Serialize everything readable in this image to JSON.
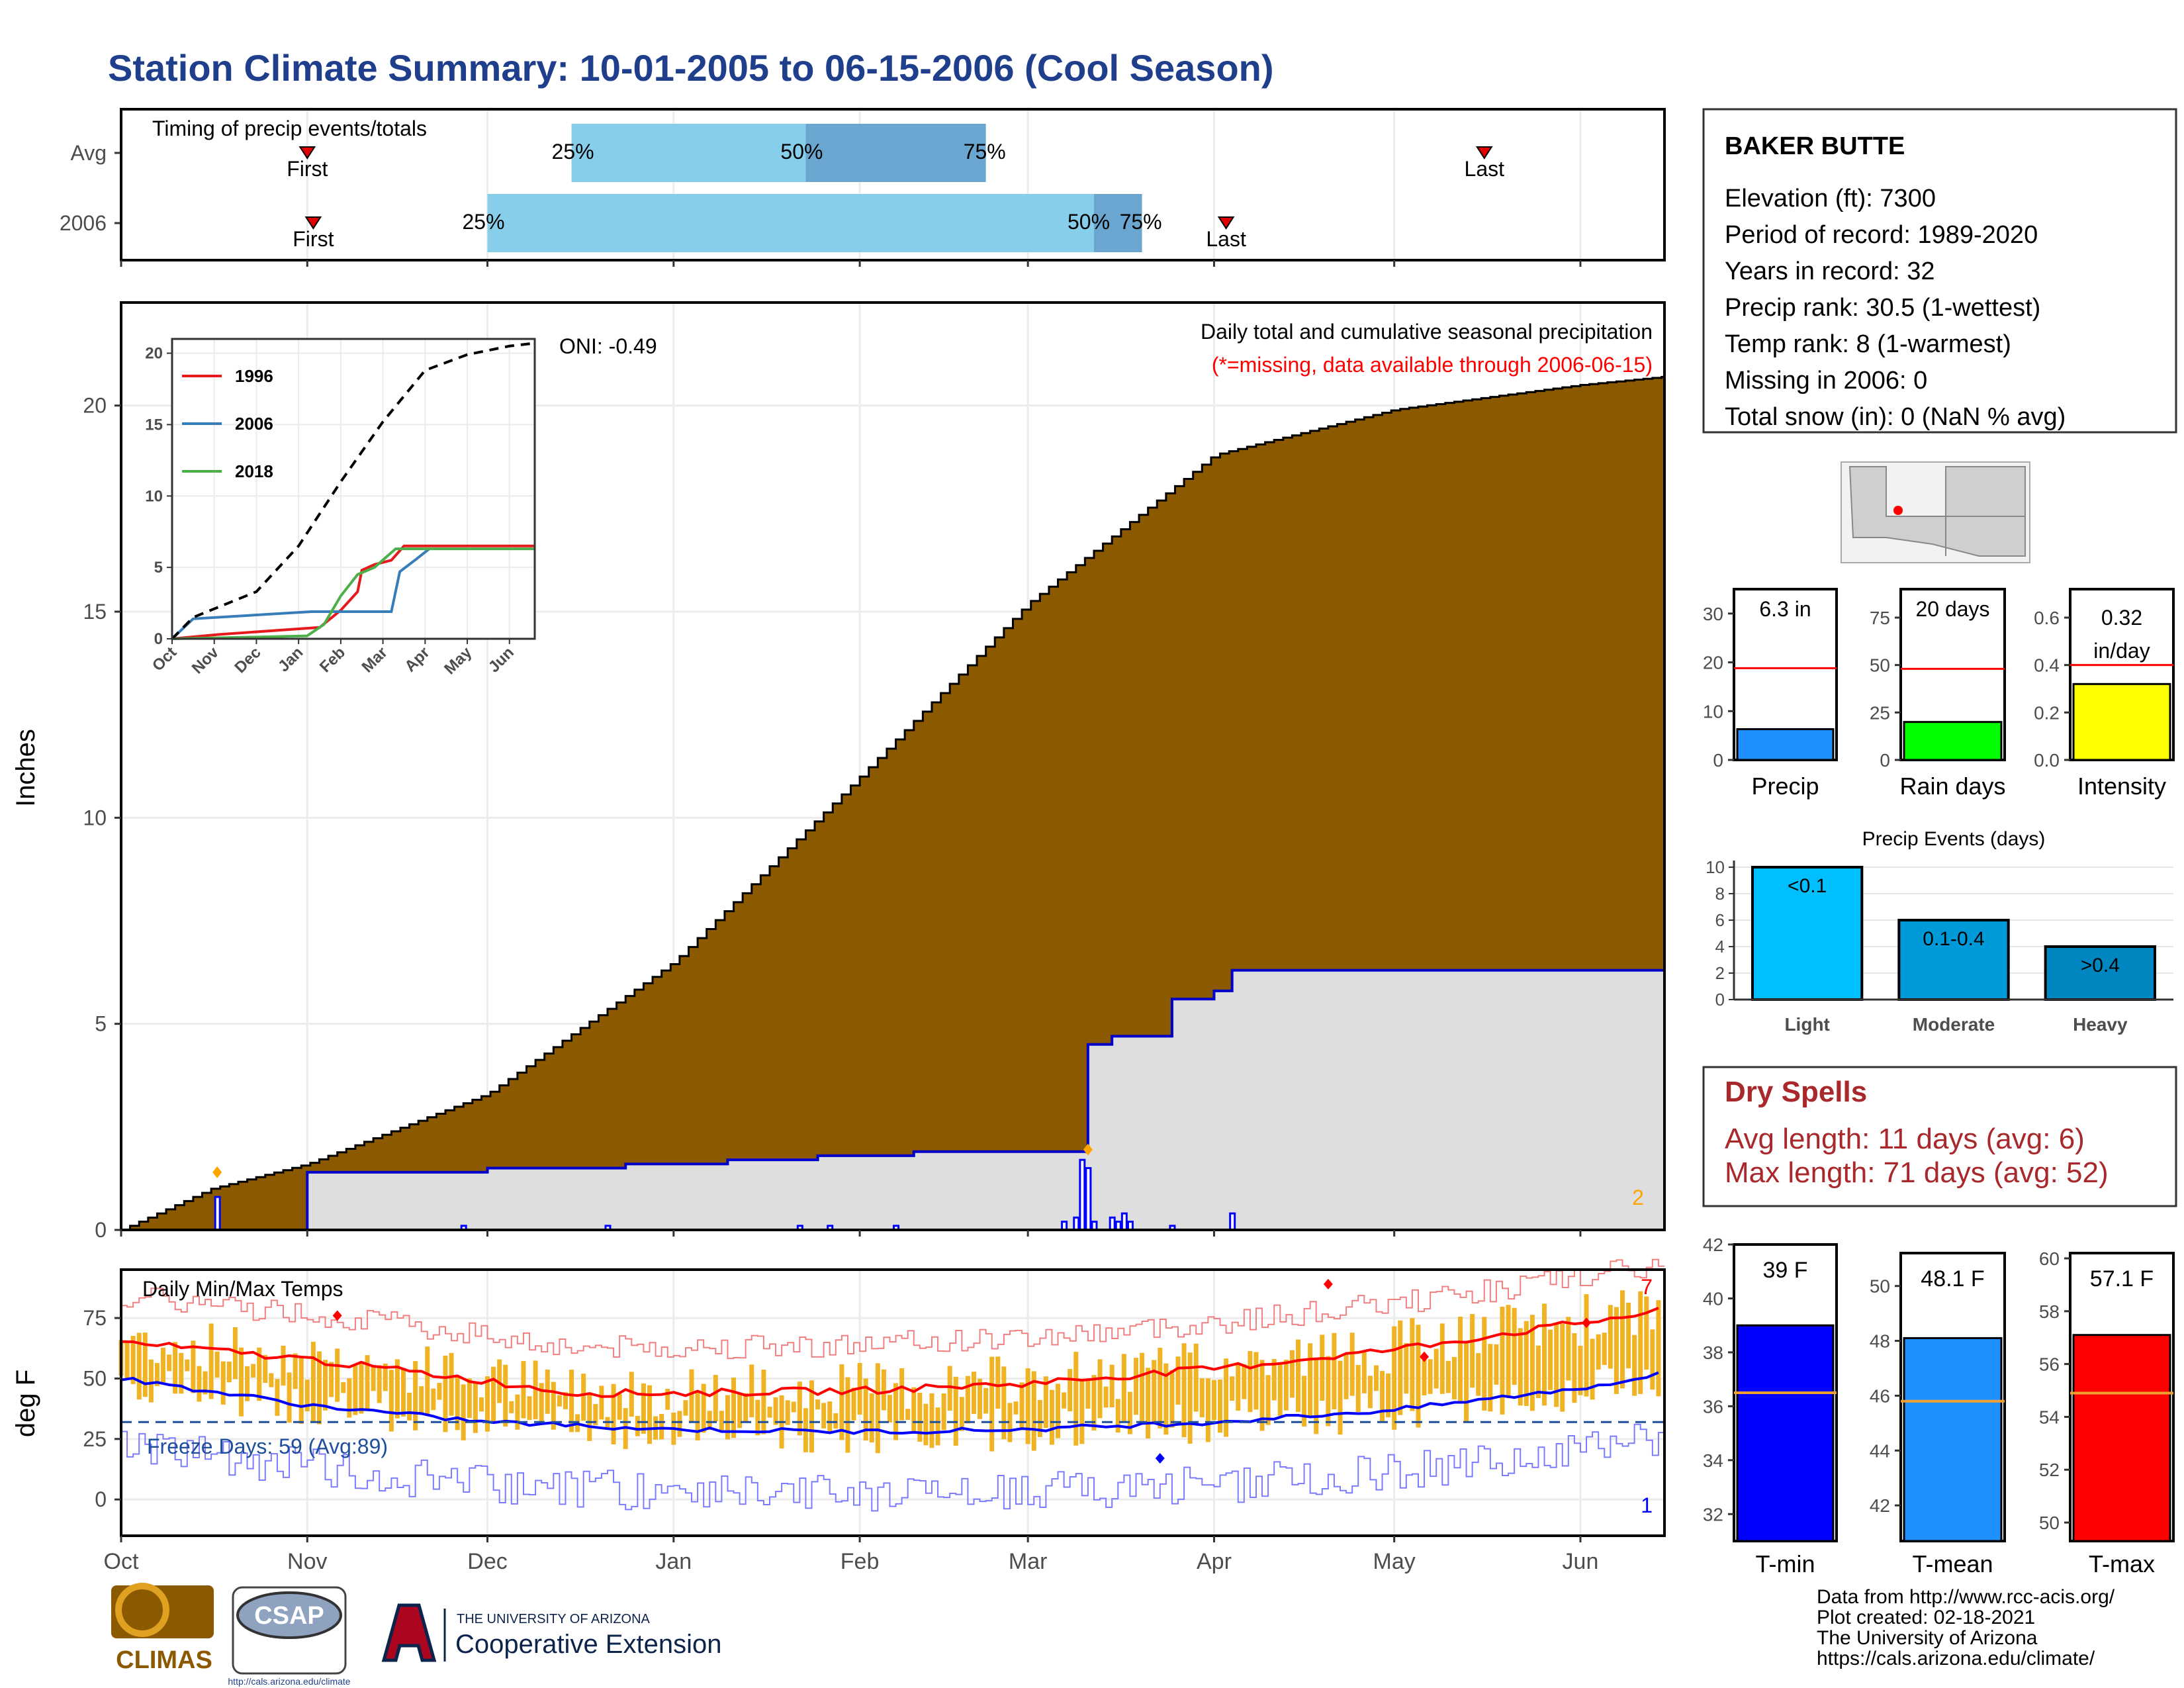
{
  "title": "Station Climate Summary: 10-01-2005 to 06-15-2006 (Cool Season)",
  "station_box": {
    "name": "BAKER BUTTE",
    "lines": [
      "Elevation (ft): 7300",
      "Period of record: 1989-2020",
      "Years in record: 32",
      "Precip rank: 30.5 (1-wettest)",
      "Temp rank: 8 (1-warmest)",
      "Missing in 2006: 0",
      "Total snow (in): 0 (NaN % avg)"
    ]
  },
  "dry_spells": {
    "title": "Dry Spells",
    "avg_line": "Avg length: 11 days (avg: 6)",
    "max_line": "Max length: 71 days (avg: 52)"
  },
  "footer": {
    "lines": [
      "Data from http://www.rcc-acis.org/",
      "Plot created: 02-18-2021",
      "The University of Arizona",
      "https://cals.arizona.edu/climate/"
    ]
  },
  "logos": {
    "climas": "CLIMAS",
    "csap": "CSAP",
    "csap_url": "http://cals.arizona.edu/climate",
    "ua_small": "THE UNIVERSITY OF ARIZONA",
    "ua_ext": "Cooperative Extension"
  },
  "month_labels": [
    "Oct",
    "Nov",
    "Dec",
    "Jan",
    "Feb",
    "Mar",
    "Apr",
    "May",
    "Jun"
  ],
  "colors": {
    "title_blue": "#1f3f8c",
    "cum_avg_fill": "#8b5a00",
    "cum_2006_fill": "#dedede",
    "timing_light": "#87ceeb",
    "timing_dark": "#6aa6cf",
    "dry_spell_red": "#a8282b",
    "temp_bar": "#f0b323",
    "tmax_line": "#ff0000",
    "tmin_line": "#0000ff"
  },
  "chart_data": [
    {
      "type": "bar",
      "name": "timing",
      "title": "Timing of precip events/totals",
      "categories": [
        "Avg",
        "2006"
      ],
      "rows": [
        {
          "label": "Avg",
          "first": "Nov 1",
          "last": "May 16",
          "p25": "Dec 15",
          "p50": "Jan 23",
          "p75": "Feb 22"
        },
        {
          "label": "2006",
          "first": "Nov 2",
          "last": "Apr 3",
          "p25": "Dec 1",
          "p50": "Mar 12",
          "p75": "Mar 20"
        }
      ],
      "marker_labels": {
        "first": "First",
        "last": "Last",
        "p25": "25%",
        "p50": "50%",
        "p75": "75%"
      }
    },
    {
      "type": "area",
      "name": "cumulative_precip",
      "title": "Daily total and cumulative seasonal precipitation",
      "subtitle": "(*=missing, data available through 2006-06-15)",
      "oni": "ONI: -0.49",
      "ylabel": "Inches",
      "ylim": [
        0,
        22.5
      ],
      "yticks": [
        0,
        5,
        10,
        15,
        20
      ],
      "avg_cumulative": {
        "x": [
          "Oct 1",
          "Oct 16",
          "Nov 1",
          "Dec 1",
          "Jan 1",
          "Feb 1",
          "Mar 1",
          "Apr 1",
          "May 1",
          "Jun 1",
          "Jun 15"
        ],
        "y": [
          0,
          1.0,
          1.6,
          3.3,
          6.5,
          11.0,
          15.2,
          18.8,
          19.9,
          20.5,
          20.7
        ]
      },
      "series_2006_cumulative": {
        "x": [
          "Oct 1",
          "Oct 16",
          "Nov 1",
          "Dec 1",
          "Dec 24",
          "Jan 10",
          "Jan 25",
          "Feb 10",
          "Mar 8",
          "Mar 11",
          "Mar 15",
          "Mar 18",
          "Mar 25",
          "Apr 1",
          "Apr 4",
          "Jun 15"
        ],
        "y": [
          0,
          0,
          1.4,
          1.5,
          1.6,
          1.7,
          1.8,
          1.9,
          1.9,
          4.5,
          4.7,
          4.7,
          5.6,
          5.8,
          6.3,
          6.3
        ]
      },
      "daily_precip_2006": {
        "x": [
          "Oct 17",
          "Nov 27",
          "Dec 21",
          "Jan 22",
          "Jan 27",
          "Feb 7",
          "Mar 7",
          "Mar 9",
          "Mar 10",
          "Mar 11",
          "Mar 12",
          "Mar 15",
          "Mar 16",
          "Mar 17",
          "Mar 18",
          "Mar 25",
          "Apr 4"
        ],
        "y": [
          0.8,
          0.1,
          0.1,
          0.1,
          0.1,
          0.1,
          0.2,
          0.3,
          1.7,
          1.5,
          0.2,
          0.3,
          0.2,
          0.4,
          0.2,
          0.1,
          0.4
        ]
      },
      "missing_count": "2"
    },
    {
      "type": "line",
      "name": "inset_cumulative",
      "categories": [
        "Oct",
        "Nov",
        "Dec",
        "Jan",
        "Feb",
        "Mar",
        "Apr",
        "May",
        "Jun"
      ],
      "ylim": [
        0,
        21
      ],
      "yticks": [
        0,
        5,
        10,
        15,
        20
      ],
      "series": [
        {
          "name": "1996",
          "color": "#e41a1c",
          "x": [
            0,
            1.1,
            3.5,
            4.0,
            4.4,
            4.5,
            4.8,
            5.2,
            5.5,
            8.6
          ],
          "y": [
            0,
            0.3,
            0.8,
            2.0,
            3.3,
            4.8,
            5.2,
            5.5,
            6.5,
            6.5
          ]
        },
        {
          "name": "2006",
          "color": "#377eb8",
          "x": [
            0,
            0.5,
            3.3,
            5.2,
            5.4,
            5.8,
            6.1
          ],
          "y": [
            0,
            1.4,
            1.9,
            1.9,
            4.7,
            5.6,
            6.3
          ]
        },
        {
          "name": "2018",
          "color": "#4daf4a",
          "x": [
            0,
            3.2,
            3.6,
            4.0,
            4.4,
            4.8,
            5.3,
            8.6
          ],
          "y": [
            0,
            0.2,
            1.0,
            3.0,
            4.5,
            5.0,
            6.3,
            6.3
          ]
        },
        {
          "name": "",
          "color": "#000000",
          "dashed": true,
          "x": [
            0,
            0.5,
            2.0,
            3.0,
            4.0,
            5.0,
            6.0,
            7.0,
            8.0,
            8.6
          ],
          "y": [
            0,
            1.5,
            3.3,
            6.5,
            11.0,
            15.2,
            18.8,
            19.9,
            20.5,
            20.7
          ]
        }
      ]
    },
    {
      "type": "line",
      "name": "daily_temps",
      "title": "Daily Min/Max Temps",
      "ylabel": "deg F",
      "ylim": [
        -15,
        95
      ],
      "yticks": [
        0,
        25,
        50,
        75
      ],
      "freeze_label": "Freeze Days: 59 (Avg:89)",
      "freeze_line": 32,
      "avg_max": {
        "x": [
          "Oct 1",
          "Nov 1",
          "Dec 1",
          "Dec 15",
          "Jan 1",
          "Feb 1",
          "Mar 1",
          "Apr 1",
          "May 1",
          "Jun 1",
          "Jun 15"
        ],
        "y": [
          65,
          58,
          49,
          44,
          44,
          45,
          48,
          54,
          62,
          73,
          78
        ]
      },
      "avg_min": {
        "x": [
          "Oct 1",
          "Nov 1",
          "Dec 1",
          "Jan 1",
          "Feb 1",
          "Mar 1",
          "Apr 1",
          "May 1",
          "Jun 1",
          "Jun 15"
        ],
        "y": [
          50,
          39,
          32,
          29,
          28,
          29,
          32,
          37,
          46,
          52
        ]
      },
      "record_high_marker": "7",
      "record_low_marker": "1"
    },
    {
      "type": "bar",
      "name": "summary_bars_precip",
      "panels": [
        {
          "label": "Precip",
          "value": 6.3,
          "value_label": "6.3 in",
          "avg": 18.8,
          "ylim": [
            0,
            35
          ],
          "yticks": [
            0,
            10,
            20,
            30
          ],
          "color": "#1e90ff"
        },
        {
          "label": "Rain days",
          "value": 20,
          "value_label": "20 days",
          "avg": 48,
          "ylim": [
            0,
            90
          ],
          "yticks": [
            0,
            25,
            50,
            75
          ],
          "color": "#00ff00"
        },
        {
          "label": "Intensity",
          "value": 0.32,
          "value_label": "0.32 in/day",
          "avg": 0.4,
          "ylim": [
            0,
            0.72
          ],
          "yticks": [
            0.0,
            0.2,
            0.4,
            0.6
          ],
          "color": "#ffff00"
        }
      ]
    },
    {
      "type": "bar",
      "name": "precip_events",
      "title": "Precip Events (days)",
      "categories": [
        "Light",
        "Moderate",
        "Heavy"
      ],
      "bar_labels": [
        "<0.1",
        "0.1-0.4",
        ">0.4"
      ],
      "values": [
        10,
        6,
        4
      ],
      "ylim": [
        0,
        10.5
      ],
      "yticks": [
        0,
        2,
        4,
        6,
        8,
        10
      ],
      "colors": [
        "#00bfff",
        "#009ad9",
        "#0087c2"
      ]
    },
    {
      "type": "bar",
      "name": "summary_bars_temp",
      "panels": [
        {
          "label": "T-min",
          "value": 39,
          "value_label": "39 F",
          "avg": 36.5,
          "ylim": [
            31,
            42
          ],
          "yticks": [
            32,
            34,
            36,
            38,
            40,
            42
          ],
          "color": "#0000ff"
        },
        {
          "label": "T-mean",
          "value": 48.1,
          "value_label": "48.1 F",
          "avg": 45.8,
          "ylim": [
            40.7,
            51.2
          ],
          "yticks": [
            42,
            44,
            46,
            48,
            50
          ],
          "color": "#1e90ff"
        },
        {
          "label": "T-max",
          "value": 57.1,
          "value_label": "57.1 F",
          "avg": 54.9,
          "ylim": [
            49.3,
            60.2
          ],
          "yticks": [
            50,
            52,
            54,
            56,
            58,
            60
          ],
          "color": "#ff0000"
        }
      ]
    }
  ]
}
